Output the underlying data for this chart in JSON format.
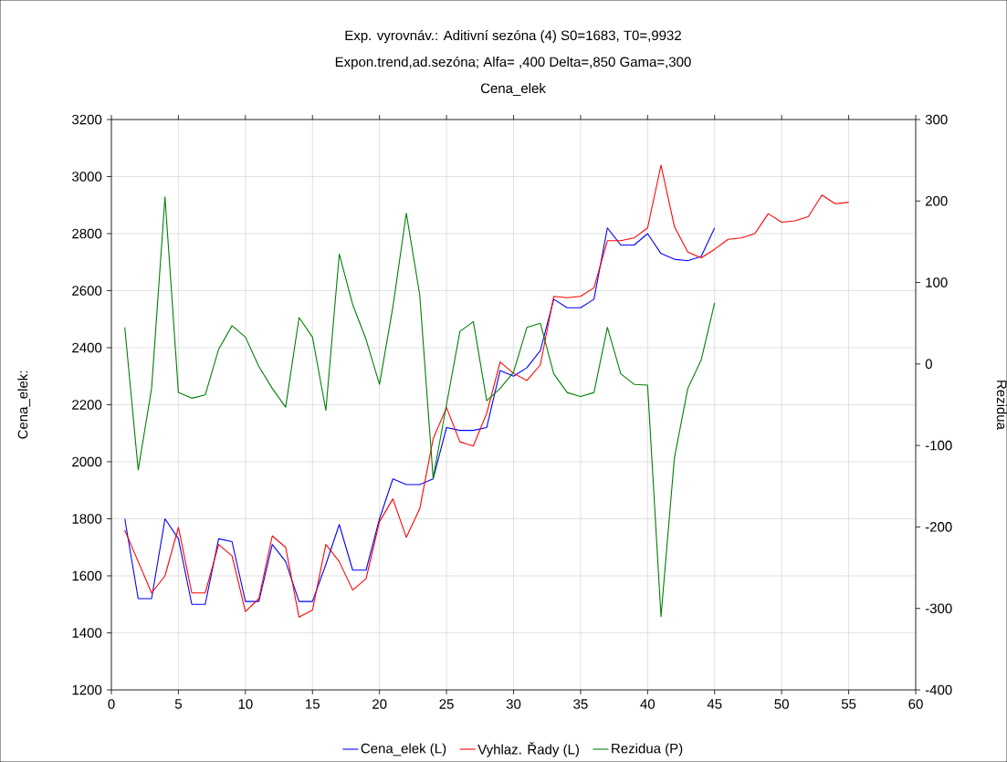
{
  "chart_data": {
    "type": "line",
    "title": "Exp. vyrovnáv.: Aditivní sezóna (4) S0=1683, T0=,9932",
    "subtitle": "Expon.trend,ad.sezóna; Alfa=  ,400 Delta=,850 Gama=,300",
    "annotations": [
      "Cena_elek"
    ],
    "ylabel": "Cena_elek:",
    "y2label": "Rezidua",
    "xlim": [
      0,
      60
    ],
    "xticks": [
      0,
      5,
      10,
      15,
      20,
      25,
      30,
      35,
      40,
      45,
      50,
      55,
      60
    ],
    "ylim": [
      1200,
      3200
    ],
    "yticks": [
      1200,
      1400,
      1600,
      1800,
      2000,
      2200,
      2400,
      2600,
      2800,
      3000,
      3200
    ],
    "y2lim": [
      -400,
      300
    ],
    "y2ticks": [
      -400,
      -300,
      -200,
      -100,
      0,
      100,
      200,
      300
    ],
    "grid": true,
    "legend": "bottom",
    "marker": "none",
    "line_style": "solid",
    "series": [
      {
        "name": "Cena_elek (L)",
        "color": "#0000ff",
        "x": [
          1,
          2,
          3,
          4,
          5,
          6,
          7,
          8,
          9,
          10,
          11,
          12,
          13,
          14,
          15,
          16,
          17,
          18,
          19,
          20,
          21,
          22,
          23,
          24,
          25,
          26,
          27,
          28,
          29,
          30,
          31,
          32,
          33,
          34,
          35,
          36,
          37,
          38,
          39,
          40,
          41,
          42,
          43,
          44,
          45
        ],
        "values": [
          1800,
          1520,
          1520,
          1800,
          1730,
          1500,
          1500,
          1730,
          1720,
          1510,
          1510,
          1710,
          1650,
          1510,
          1510,
          1640,
          1780,
          1620,
          1620,
          1800,
          1940,
          1920,
          1920,
          1940,
          2120,
          2110,
          2110,
          2120,
          2320,
          2300,
          2330,
          2390,
          2570,
          2540,
          2540,
          2570,
          2820,
          2760,
          2760,
          2800,
          2730,
          2710,
          2705,
          2720,
          2820
        ]
      },
      {
        "name": "Vyhlaz. Řady (L)",
        "color": "#ff0000",
        "x": [
          1,
          2,
          3,
          4,
          5,
          6,
          7,
          8,
          9,
          10,
          11,
          12,
          13,
          14,
          15,
          16,
          17,
          18,
          19,
          20,
          21,
          22,
          23,
          24,
          25,
          26,
          27,
          28,
          29,
          30,
          31,
          32,
          33,
          34,
          35,
          36,
          37,
          38,
          39,
          40,
          41,
          42,
          43,
          44,
          45,
          46,
          47,
          48,
          49,
          50,
          51,
          52,
          53,
          54,
          55
        ],
        "values": [
          1760,
          1650,
          1540,
          1600,
          1770,
          1540,
          1540,
          1710,
          1670,
          1475,
          1520,
          1740,
          1700,
          1455,
          1480,
          1710,
          1650,
          1550,
          1590,
          1790,
          1870,
          1735,
          1835,
          2080,
          2190,
          2070,
          2055,
          2170,
          2350,
          2310,
          2285,
          2340,
          2580,
          2575,
          2580,
          2610,
          2775,
          2775,
          2785,
          2820,
          3040,
          2825,
          2735,
          2715,
          2745,
          2780,
          2785,
          2800,
          2870,
          2840,
          2845,
          2860,
          2935,
          2905,
          2910
        ]
      },
      {
        "name": "Rezidua (P)",
        "color": "#008000",
        "axis": "y2",
        "x": [
          1,
          2,
          3,
          4,
          5,
          6,
          7,
          8,
          9,
          10,
          11,
          12,
          13,
          14,
          15,
          16,
          17,
          18,
          19,
          20,
          21,
          22,
          23,
          24,
          25,
          26,
          27,
          28,
          29,
          30,
          31,
          32,
          33,
          34,
          35,
          36,
          37,
          38,
          39,
          40,
          41,
          42,
          43,
          44,
          45
        ],
        "values": [
          45,
          -130,
          -30,
          205,
          -35,
          -42,
          -38,
          18,
          47,
          33,
          -3,
          -30,
          -53,
          57,
          33,
          -57,
          135,
          73,
          30,
          -25,
          70,
          185,
          85,
          -140,
          -50,
          40,
          52,
          -45,
          -30,
          -10,
          45,
          50,
          -12,
          -35,
          -40,
          -35,
          45,
          -12,
          -25,
          -26,
          -310,
          -115,
          -30,
          5,
          75
        ]
      }
    ]
  }
}
